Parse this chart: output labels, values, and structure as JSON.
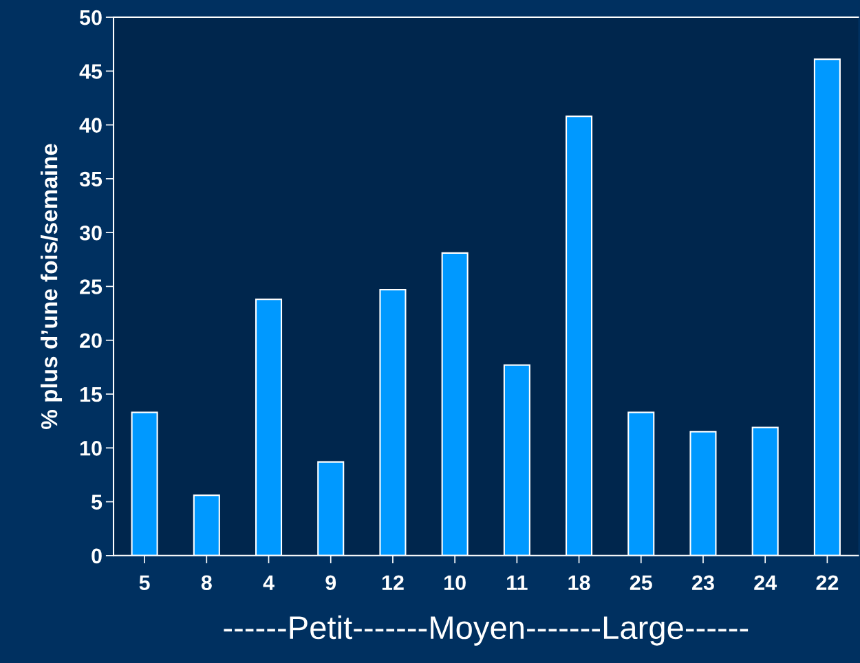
{
  "chart_data": {
    "type": "bar",
    "categories": [
      "5",
      "8",
      "4",
      "9",
      "12",
      "10",
      "11",
      "18",
      "25",
      "23",
      "24",
      "22"
    ],
    "values": [
      13.3,
      5.6,
      23.8,
      8.7,
      24.7,
      28.1,
      17.7,
      40.8,
      13.3,
      11.5,
      11.9,
      46.1
    ],
    "color": "#0099ff",
    "ylabel": "% plus d’une fois/semaine",
    "xlabel": "------Petit-------Moyen-------Large------",
    "ylim": [
      0,
      50
    ],
    "yticks": [
      0,
      5,
      10,
      15,
      20,
      25,
      30,
      35,
      40,
      45,
      50
    ],
    "grid": false,
    "legend": false
  }
}
